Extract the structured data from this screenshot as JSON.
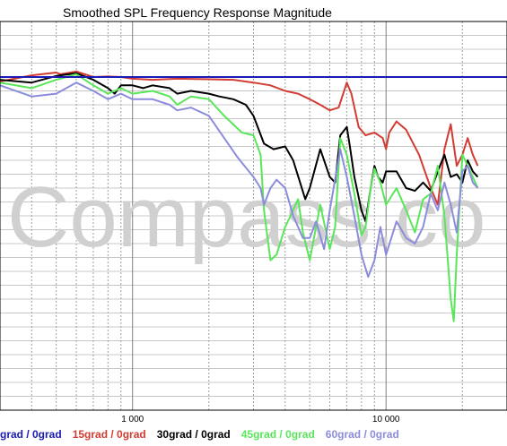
{
  "chart_data": {
    "type": "line",
    "title": "Smoothed SPL Frequency Response Magnitude",
    "xscale": "log",
    "xlim": [
      300,
      30000
    ],
    "ylim": [
      -60,
      10
    ],
    "grid": true,
    "x_tick_labels": [
      {
        "x": 1000,
        "label": "1 000"
      },
      {
        "x": 10000,
        "label": "10 000"
      }
    ],
    "reference_line": {
      "value": 0,
      "color": "#1a1ab4"
    },
    "watermark": "Compass.co",
    "legend": [
      {
        "text": "grad / 0grad",
        "color": "#1a1ab4"
      },
      {
        "text": "15grad / 0grad",
        "color": "#d23c32"
      },
      {
        "text": "30grad / 0grad",
        "color": "#000000"
      },
      {
        "text": "45grad / 0grad",
        "color": "#5ae65a"
      },
      {
        "text": "60grad / 0grad",
        "color": "#8c8cdc"
      }
    ],
    "series": [
      {
        "color": "#d23c32",
        "points": [
          [
            300,
            -0.8
          ],
          [
            400,
            0.3
          ],
          [
            500,
            0.8
          ],
          [
            520,
            0.5
          ],
          [
            600,
            1.0
          ],
          [
            700,
            0.0
          ],
          [
            800,
            0.1
          ],
          [
            900,
            0.0
          ],
          [
            1000,
            -0.3
          ],
          [
            1200,
            -0.5
          ],
          [
            1500,
            -0.3
          ],
          [
            2000,
            -0.4
          ],
          [
            2500,
            -0.5
          ],
          [
            3000,
            -1.0
          ],
          [
            3500,
            -1.5
          ],
          [
            4000,
            -2.5
          ],
          [
            4500,
            -3.0
          ],
          [
            5000,
            -4.0
          ],
          [
            5500,
            -5.0
          ],
          [
            6000,
            -6.0
          ],
          [
            6500,
            -5.5
          ],
          [
            7000,
            -1.0
          ],
          [
            7300,
            -3.0
          ],
          [
            7800,
            -9.0
          ],
          [
            8300,
            -10.5
          ],
          [
            9000,
            -10.0
          ],
          [
            9700,
            -11.0
          ],
          [
            10000,
            -13.0
          ],
          [
            10300,
            -10.0
          ],
          [
            11000,
            -8.0
          ],
          [
            12000,
            -9.5
          ],
          [
            13500,
            -14.0
          ],
          [
            15000,
            -20.0
          ],
          [
            16000,
            -23.0
          ],
          [
            17000,
            -13.0
          ],
          [
            18000,
            -8.5
          ],
          [
            19000,
            -16.0
          ],
          [
            20000,
            -14.0
          ],
          [
            21000,
            -11.0
          ],
          [
            22000,
            -14.0
          ],
          [
            23000,
            -16.0
          ]
        ]
      },
      {
        "color": "#000000",
        "points": [
          [
            300,
            -0.5
          ],
          [
            400,
            -1.0
          ],
          [
            500,
            0.2
          ],
          [
            600,
            0.7
          ],
          [
            700,
            -0.5
          ],
          [
            800,
            -2.0
          ],
          [
            850,
            -3.0
          ],
          [
            900,
            -1.5
          ],
          [
            1000,
            -1.5
          ],
          [
            1100,
            -2.0
          ],
          [
            1200,
            -1.5
          ],
          [
            1400,
            -2.0
          ],
          [
            1500,
            -3.0
          ],
          [
            1700,
            -2.5
          ],
          [
            2000,
            -3.0
          ],
          [
            2200,
            -3.5
          ],
          [
            2500,
            -4.0
          ],
          [
            2800,
            -5.0
          ],
          [
            3000,
            -7.0
          ],
          [
            3300,
            -12.0
          ],
          [
            3600,
            -13.0
          ],
          [
            4000,
            -12.5
          ],
          [
            4300,
            -15.0
          ],
          [
            4800,
            -22.0
          ],
          [
            5000,
            -20.0
          ],
          [
            5500,
            -13.0
          ],
          [
            6000,
            -18.0
          ],
          [
            6300,
            -19.0
          ],
          [
            6600,
            -10.5
          ],
          [
            7000,
            -9.0
          ],
          [
            7200,
            -12.5
          ],
          [
            7500,
            -18.0
          ],
          [
            8000,
            -24.0
          ],
          [
            8300,
            -26.0
          ],
          [
            8700,
            -20.0
          ],
          [
            9000,
            -16.0
          ],
          [
            9300,
            -18.0
          ],
          [
            9700,
            -19.0
          ],
          [
            10000,
            -17.0
          ],
          [
            11000,
            -17.0
          ],
          [
            12000,
            -20.0
          ],
          [
            13000,
            -20.5
          ],
          [
            14000,
            -19.0
          ],
          [
            15000,
            -20.5
          ],
          [
            16000,
            -17.0
          ],
          [
            17000,
            -14.0
          ],
          [
            18000,
            -18.0
          ],
          [
            19000,
            -17.5
          ],
          [
            20000,
            -19.0
          ],
          [
            21000,
            -15.0
          ],
          [
            22000,
            -17.0
          ],
          [
            23000,
            -18.0
          ]
        ]
      },
      {
        "color": "#5ae65a",
        "points": [
          [
            300,
            -1.0
          ],
          [
            400,
            -2.0
          ],
          [
            500,
            -0.5
          ],
          [
            600,
            0.5
          ],
          [
            700,
            -1.5
          ],
          [
            800,
            -3.0
          ],
          [
            900,
            -2.0
          ],
          [
            1000,
            -3.0
          ],
          [
            1200,
            -2.5
          ],
          [
            1400,
            -3.5
          ],
          [
            1500,
            -5.0
          ],
          [
            1700,
            -3.5
          ],
          [
            2000,
            -4.0
          ],
          [
            2300,
            -7.0
          ],
          [
            2700,
            -10.0
          ],
          [
            3000,
            -10.5
          ],
          [
            3200,
            -14.0
          ],
          [
            3300,
            -24.0
          ],
          [
            3500,
            -33.0
          ],
          [
            3700,
            -32.0
          ],
          [
            4000,
            -27.0
          ],
          [
            4200,
            -25.0
          ],
          [
            4500,
            -22.0
          ],
          [
            4700,
            -28.0
          ],
          [
            5000,
            -33.0
          ],
          [
            5500,
            -23.0
          ],
          [
            6000,
            -31.0
          ],
          [
            6300,
            -27.0
          ],
          [
            6600,
            -11.0
          ],
          [
            7000,
            -14.0
          ],
          [
            7500,
            -21.0
          ],
          [
            8000,
            -28.5
          ],
          [
            8300,
            -27.0
          ],
          [
            8700,
            -20.0
          ],
          [
            9000,
            -16.5
          ],
          [
            9500,
            -19.0
          ],
          [
            10000,
            -23.0
          ],
          [
            11000,
            -20.0
          ],
          [
            12000,
            -24.0
          ],
          [
            13000,
            -28.0
          ],
          [
            14000,
            -22.0
          ],
          [
            15000,
            -21.0
          ],
          [
            16000,
            -16.0
          ],
          [
            17000,
            -25.0
          ],
          [
            18000,
            -40.0
          ],
          [
            18500,
            -44.0
          ],
          [
            19000,
            -32.0
          ],
          [
            20000,
            -14.0
          ],
          [
            21000,
            -16.0
          ],
          [
            22000,
            -18.0
          ],
          [
            23000,
            -20.0
          ]
        ]
      },
      {
        "color": "#8c8cdc",
        "points": [
          [
            300,
            -1.5
          ],
          [
            400,
            -3.5
          ],
          [
            500,
            -3.0
          ],
          [
            600,
            -1.0
          ],
          [
            700,
            -2.5
          ],
          [
            800,
            -4.0
          ],
          [
            900,
            -3.0
          ],
          [
            1000,
            -4.0
          ],
          [
            1200,
            -4.0
          ],
          [
            1400,
            -5.0
          ],
          [
            1500,
            -6.0
          ],
          [
            1700,
            -5.5
          ],
          [
            2000,
            -7.0
          ],
          [
            2300,
            -11.0
          ],
          [
            2600,
            -14.5
          ],
          [
            3000,
            -18.0
          ],
          [
            3200,
            -20.0
          ],
          [
            3300,
            -23.0
          ],
          [
            3500,
            -20.0
          ],
          [
            3700,
            -18.5
          ],
          [
            4000,
            -20.0
          ],
          [
            4300,
            -25.0
          ],
          [
            4700,
            -29.0
          ],
          [
            5000,
            -29.0
          ],
          [
            5300,
            -26.0
          ],
          [
            5700,
            -31.0
          ],
          [
            6000,
            -24.0
          ],
          [
            6600,
            -13.0
          ],
          [
            7000,
            -18.0
          ],
          [
            7500,
            -25.0
          ],
          [
            8000,
            -32.0
          ],
          [
            8500,
            -36.0
          ],
          [
            9000,
            -33.0
          ],
          [
            9500,
            -27.0
          ],
          [
            10000,
            -32.0
          ],
          [
            11000,
            -26.0
          ],
          [
            12000,
            -29.0
          ],
          [
            13000,
            -30.0
          ],
          [
            14000,
            -27.0
          ],
          [
            15000,
            -21.0
          ],
          [
            16000,
            -24.0
          ],
          [
            17000,
            -19.0
          ],
          [
            18000,
            -23.0
          ],
          [
            19000,
            -28.0
          ],
          [
            20000,
            -17.0
          ],
          [
            21000,
            -16.0
          ],
          [
            22000,
            -19.0
          ],
          [
            23000,
            -20.0
          ]
        ]
      }
    ]
  }
}
